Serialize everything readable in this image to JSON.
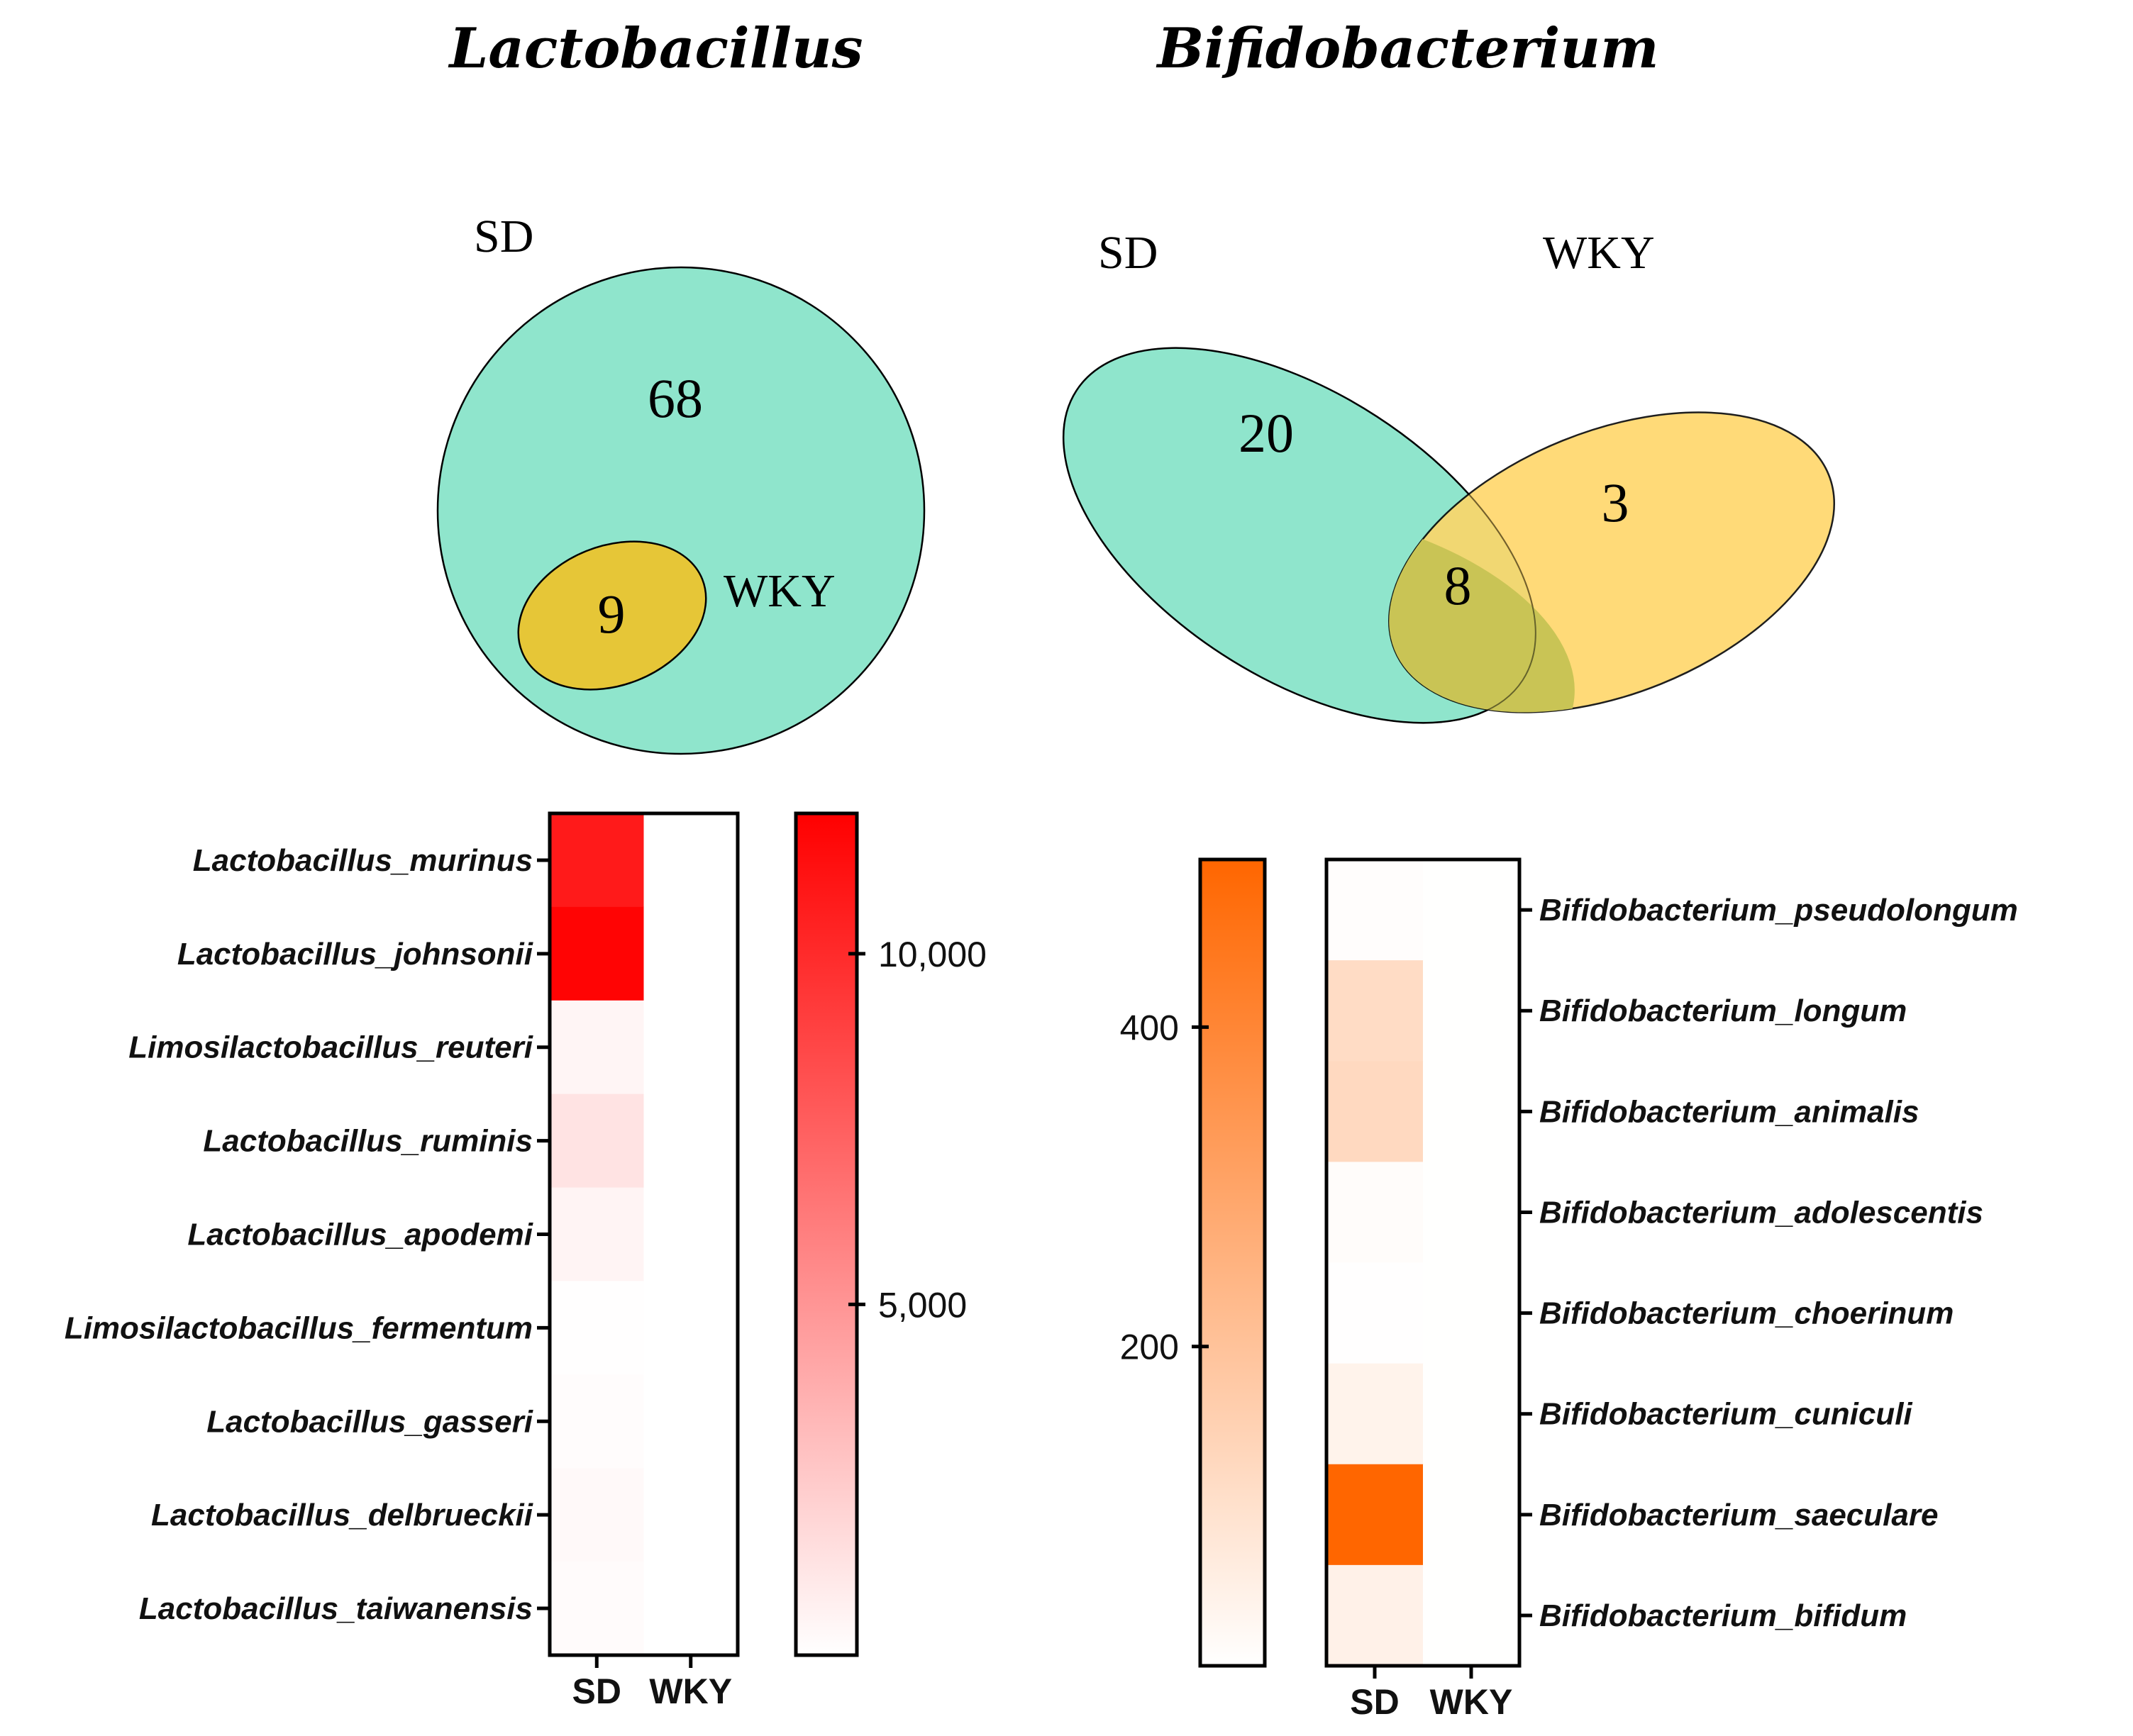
{
  "titles": {
    "left": "Lactobacillus",
    "right": "Bifidobacterium"
  },
  "chart_data": [
    {
      "type": "venn",
      "title": "Lactobacillus",
      "sets": [
        "SD",
        "WKY"
      ],
      "regions": {
        "sd_only": 68,
        "overlap": 9,
        "wky_only": 0
      },
      "labels": {
        "sd": "SD",
        "wky": "WKY",
        "sd_only": "68",
        "overlap": "9"
      },
      "colors": {
        "sd": "#8fe5cc",
        "wky": "#e6c637"
      }
    },
    {
      "type": "venn",
      "title": "Bifidobacterium",
      "sets": [
        "SD",
        "WKY"
      ],
      "regions": {
        "sd_only": 20,
        "overlap": 8,
        "wky_only": 3
      },
      "labels": {
        "sd": "SD",
        "wky": "WKY",
        "sd_only": "20",
        "overlap": "8",
        "wky_only": "3"
      },
      "colors": {
        "sd": "#8fe5cc",
        "wky": "#ffd666",
        "overlap": "#c9c455"
      }
    },
    {
      "type": "heatmap",
      "title": "Lactobacillus",
      "columns": [
        "SD",
        "WKY"
      ],
      "rows": [
        "Lactobacillus_murinus",
        "Lactobacillus_johnsonii",
        "Limosilactobacillus_reuteri",
        "Lactobacillus_ruminis",
        "Lactobacillus_apodemi",
        "Limosilactobacillus_fermentum",
        "Lactobacillus_gasseri",
        "Lactobacillus_delbrueckii",
        "Lactobacillus_taiwanensis"
      ],
      "values": [
        [
          10800,
          20
        ],
        [
          11800,
          20
        ],
        [
          450,
          10
        ],
        [
          1300,
          10
        ],
        [
          500,
          10
        ],
        [
          60,
          10
        ],
        [
          150,
          10
        ],
        [
          300,
          10
        ],
        [
          180,
          10
        ]
      ],
      "colorbar": {
        "min": 0,
        "max": 12000,
        "ticks": [
          5000,
          10000
        ],
        "tick_labels": [
          "5,000",
          "10,000"
        ],
        "color_low": "#ffffff",
        "color_high": "#ff0000"
      }
    },
    {
      "type": "heatmap",
      "title": "Bifidobacterium",
      "columns": [
        "SD",
        "WKY"
      ],
      "rows": [
        "Bifidobacterium_pseudolongum",
        "Bifidobacterium_longum",
        "Bifidobacterium_animalis",
        "Bifidobacterium_adolescentis",
        "Bifidobacterium_choerinum",
        "Bifidobacterium_cuniculi",
        "Bifidobacterium_saeculare",
        "Bifidobacterium_bifidum"
      ],
      "values": [
        [
          5,
          1
        ],
        [
          115,
          1
        ],
        [
          125,
          1
        ],
        [
          10,
          1
        ],
        [
          2,
          1
        ],
        [
          40,
          1
        ],
        [
          505,
          1
        ],
        [
          45,
          1
        ]
      ],
      "colorbar": {
        "min": 0,
        "max": 505,
        "ticks": [
          200,
          400
        ],
        "tick_labels": [
          "200",
          "400"
        ],
        "color_low": "#ffffff",
        "color_high": "#ff6600"
      }
    }
  ]
}
